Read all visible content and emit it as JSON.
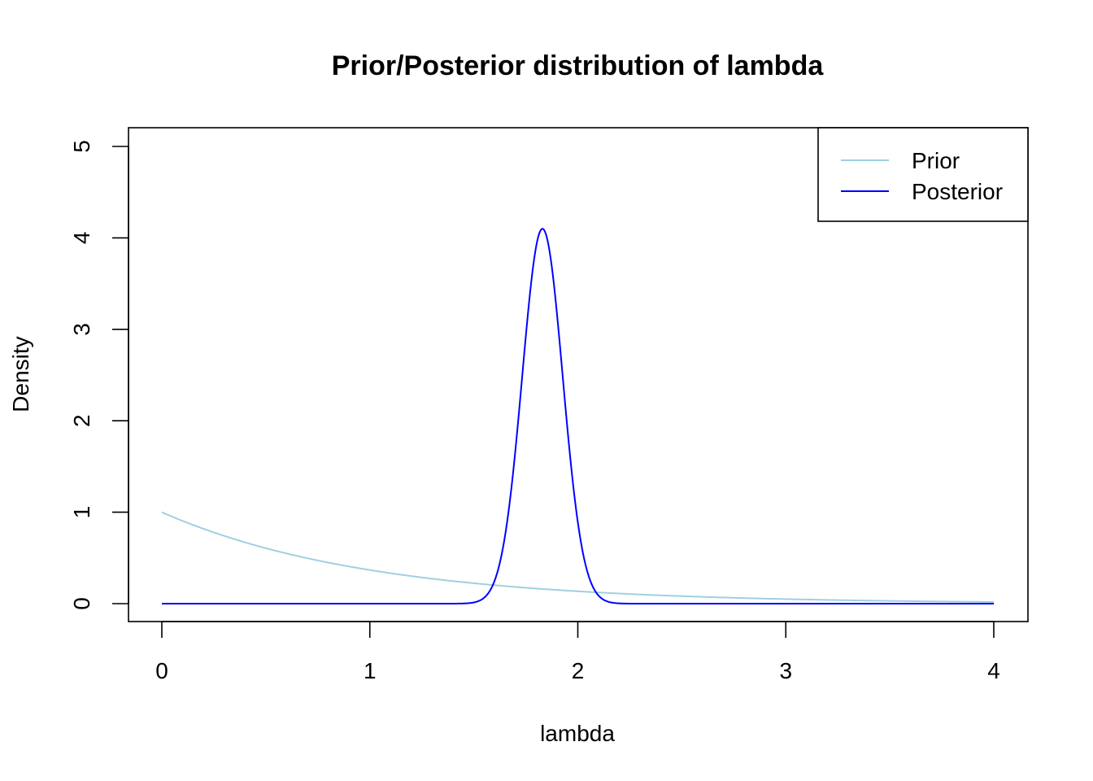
{
  "chart_data": {
    "type": "line",
    "title": "Prior/Posterior distribution of lambda",
    "xlabel": "lambda",
    "ylabel": "Density",
    "xlim": [
      0,
      4
    ],
    "ylim": [
      0,
      5
    ],
    "x_ticks": [
      "0",
      "1",
      "2",
      "3",
      "4"
    ],
    "y_ticks": [
      "0",
      "1",
      "2",
      "3",
      "4",
      "5"
    ],
    "grid": false,
    "legend_position": "top-right",
    "series": [
      {
        "name": "Prior",
        "color": "#9fd0e0",
        "distribution": "exponential",
        "rate": 1,
        "x_range": [
          0,
          4
        ]
      },
      {
        "name": "Posterior",
        "color": "#0000ff",
        "distribution": "normal",
        "mean": 1.83,
        "sd": 0.0973,
        "x_range": [
          0,
          4
        ]
      }
    ]
  }
}
